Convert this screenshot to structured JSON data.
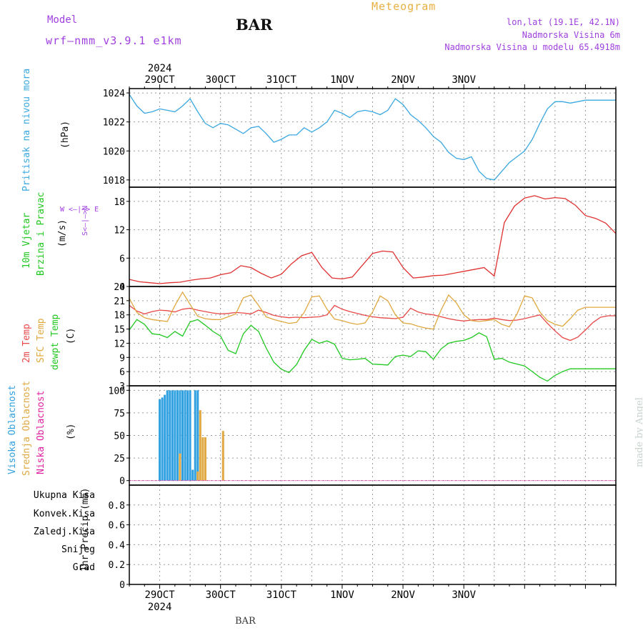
{
  "header": {
    "model_label": "Model",
    "model_name": "wrf—nmm_v3.9.1 e1km",
    "station": "BAR",
    "title": "Meteogram",
    "lonlat": "lon,lat (19.1E, 42.1N)",
    "elevation": "Nadmorska Visina 6m",
    "model_elevation": "Nadmorska Visina u modelu 65.4918m",
    "footer_station": "BAR",
    "credit": "made by Angel"
  },
  "time_axis": {
    "year": "2024",
    "days": [
      "29OCT",
      "30OCT",
      "31OCT",
      "1NOV",
      "2NOV",
      "3NOV"
    ]
  },
  "panels": {
    "pressure": {
      "label": "Pritisak na nivou mora",
      "unit": "(hPa)",
      "color": "#3aa8e0"
    },
    "wind": {
      "label_speed": "10m Vjetar",
      "label_dir": "Brzina i Pravac",
      "unit": "(m/s)",
      "compass": "W  <—|—>  E",
      "compass_ns": "S<—|—>N",
      "speed_color": "#e03030"
    },
    "temp": {
      "t2m": "2m Temp",
      "sfc": "SFC Temp",
      "dew": "dewpt Temp",
      "unit": "(C)",
      "t2m_color": "#e84848",
      "sfc_color": "#e0a840",
      "dew_color": "#20c820"
    },
    "cloud": {
      "high": "Visoka Oblacnost",
      "mid": "Srednja Oblacnost",
      "low": "Niska Oblacnost",
      "unit": "(%)",
      "high_color": "#30a0e0",
      "mid_color": "#e0a840",
      "low_color": "#e020a0"
    },
    "precip": {
      "unit": "1hr Precip (mm)",
      "labels": [
        {
          "text": "Ukupna Kisa",
          "color": "#20c820"
        },
        {
          "text": "Konvek.Kisa",
          "color": "#e84848"
        },
        {
          "text": "Zaledj.Kisa",
          "color": "#f08030"
        },
        {
          "text": "Snijeg",
          "color": "#5050e0"
        },
        {
          "text": "Grad",
          "color": "#30c0c0"
        }
      ]
    }
  },
  "chart_data": [
    {
      "type": "line",
      "ylabel": "Pritisak na nivou mora (hPa)",
      "ylim": [
        1017.5,
        1024.3
      ],
      "yticks": [
        1018,
        1020,
        1022,
        1024
      ],
      "x_unit": "hours from 29OCT 00Z",
      "series": [
        {
          "x": [
            -12,
            -9,
            -6,
            -3,
            0,
            3,
            6,
            9,
            12,
            15,
            18,
            21,
            24,
            27,
            30,
            33,
            36,
            39,
            42,
            45,
            48,
            51,
            54,
            57,
            60,
            63,
            66,
            69,
            72,
            75,
            78,
            81,
            84,
            87,
            90,
            93,
            96,
            99,
            102,
            105,
            108,
            111,
            114,
            117,
            120,
            123,
            126,
            129,
            132,
            135,
            138,
            141,
            144,
            147,
            150,
            153,
            156,
            159,
            162,
            165,
            168,
            171,
            174,
            177,
            180
          ],
          "y": [
            1023.9,
            1023.1,
            1022.6,
            1022.7,
            1022.9,
            1022.8,
            1022.7,
            1023.1,
            1023.6,
            1022.7,
            1021.9,
            1021.6,
            1021.9,
            1021.8,
            1021.5,
            1021.2,
            1021.6,
            1021.7,
            1021.2,
            1020.6,
            1020.8,
            1021.1,
            1021.1,
            1021.6,
            1021.3,
            1021.6,
            1022.0,
            1022.8,
            1022.6,
            1022.3,
            1022.7,
            1022.8,
            1022.7,
            1022.5,
            1022.8,
            1023.6,
            1023.2,
            1022.5,
            1022.1,
            1021.6,
            1021.0,
            1020.6,
            1019.9,
            1019.5,
            1019.4,
            1019.6,
            1018.6,
            1018.1,
            1018.0,
            1018.6,
            1019.2,
            1019.6,
            1020.0,
            1020.8,
            1021.9,
            1022.9,
            1023.4,
            1023.4,
            1023.3,
            1023.4,
            1023.5,
            1023.5,
            1023.5,
            1023.5,
            1023.5
          ]
        }
      ]
    },
    {
      "type": "line",
      "ylabel": "10m Vjetar Brzina i Pravac (m/s)",
      "ylim": [
        0,
        21
      ],
      "yticks": [
        0,
        6,
        12,
        18
      ],
      "series": [
        {
          "x": [
            -12,
            -8,
            -4,
            0,
            4,
            8,
            12,
            16,
            20,
            24,
            28,
            32,
            36,
            40,
            44,
            48,
            52,
            56,
            60,
            64,
            68,
            72,
            76,
            80,
            84,
            88,
            92,
            96,
            100,
            104,
            108,
            112,
            116,
            120,
            124,
            128,
            132,
            136,
            140,
            144,
            148,
            152,
            156,
            160,
            164,
            168,
            172,
            176,
            180
          ],
          "y": [
            1.5,
            1.0,
            0.8,
            0.6,
            0.8,
            0.9,
            1.3,
            1.6,
            1.8,
            2.5,
            2.9,
            4.4,
            4.0,
            2.8,
            1.8,
            2.6,
            4.8,
            6.5,
            7.2,
            4.0,
            1.8,
            1.6,
            2.0,
            4.5,
            7.0,
            7.5,
            7.3,
            4.0,
            1.8,
            2.0,
            2.3,
            2.4,
            2.8,
            3.2,
            3.6,
            4.0,
            2.2,
            13.5,
            17.0,
            18.7,
            19.2,
            18.5,
            18.8,
            18.6,
            17.2,
            15.0,
            14.4,
            13.4,
            11.2
          ]
        }
      ]
    },
    {
      "type": "line",
      "ylabel": "2m Temp SFC Temp dewpt Temp (C)",
      "ylim": [
        3,
        24
      ],
      "yticks": [
        3,
        6,
        9,
        12,
        15,
        18,
        21,
        24
      ],
      "series": [
        {
          "name": "2m Temp",
          "x": [
            -12,
            -9,
            -6,
            -3,
            0,
            3,
            6,
            9,
            12,
            15,
            18,
            21,
            24,
            27,
            30,
            33,
            36,
            39,
            42,
            45,
            48,
            51,
            54,
            57,
            60,
            63,
            66,
            69,
            72,
            75,
            78,
            81,
            84,
            87,
            90,
            93,
            96,
            99,
            102,
            105,
            108,
            111,
            114,
            117,
            120,
            123,
            126,
            129,
            132,
            135,
            138,
            141,
            144,
            147,
            150,
            153,
            156,
            159,
            162,
            165,
            168,
            171,
            174,
            177,
            180
          ],
          "y": [
            20.0,
            18.8,
            18.2,
            18.7,
            19.0,
            18.9,
            18.6,
            19.2,
            19.4,
            19.0,
            18.7,
            18.4,
            18.2,
            18.3,
            18.5,
            18.4,
            18.2,
            19.0,
            18.5,
            17.9,
            17.6,
            17.4,
            17.5,
            17.4,
            17.5,
            17.6,
            18.0,
            20.0,
            19.2,
            18.7,
            18.3,
            17.9,
            17.6,
            17.4,
            17.3,
            17.2,
            17.5,
            19.4,
            18.6,
            18.2,
            18.0,
            17.6,
            17.2,
            16.9,
            16.7,
            16.9,
            17.0,
            17.0,
            17.3,
            17.0,
            16.8,
            16.9,
            17.2,
            17.6,
            18.0,
            16.2,
            14.6,
            13.2,
            12.6,
            13.3,
            14.8,
            16.4,
            17.5,
            17.8,
            17.8
          ]
        },
        {
          "name": "SFC Temp",
          "x": [
            -12,
            -9,
            -6,
            -3,
            0,
            3,
            6,
            9,
            12,
            15,
            18,
            21,
            24,
            27,
            30,
            33,
            36,
            39,
            42,
            45,
            48,
            51,
            54,
            57,
            60,
            63,
            66,
            69,
            72,
            75,
            78,
            81,
            84,
            87,
            90,
            93,
            96,
            99,
            102,
            105,
            108,
            111,
            114,
            117,
            120,
            123,
            126,
            129,
            132,
            135,
            138,
            141,
            144,
            147,
            150,
            153,
            156,
            159,
            162,
            165,
            168,
            171,
            174,
            177,
            180
          ],
          "y": [
            21.5,
            18.5,
            17.4,
            17.0,
            16.8,
            16.6,
            20.0,
            22.8,
            20.2,
            17.7,
            17.2,
            17.0,
            17.0,
            17.6,
            18.2,
            21.6,
            22.2,
            20.0,
            17.6,
            17.0,
            16.6,
            16.2,
            16.4,
            18.5,
            21.8,
            22.0,
            19.2,
            17.1,
            16.8,
            16.3,
            16.0,
            16.3,
            18.6,
            22.0,
            21.0,
            18.0,
            16.3,
            16.1,
            15.6,
            15.2,
            15.0,
            19.0,
            22.2,
            20.6,
            18.0,
            16.8,
            16.6,
            16.8,
            17.0,
            16.0,
            15.5,
            18.2,
            22.0,
            21.6,
            18.6,
            16.8,
            16.0,
            15.6,
            17.2,
            19.0,
            19.6,
            19.6,
            19.6,
            19.6,
            19.6
          ]
        },
        {
          "name": "dewpt Temp",
          "x": [
            -12,
            -9,
            -6,
            -3,
            0,
            3,
            6,
            9,
            12,
            15,
            18,
            21,
            24,
            27,
            30,
            33,
            36,
            39,
            42,
            45,
            48,
            51,
            54,
            57,
            60,
            63,
            66,
            69,
            72,
            75,
            78,
            81,
            84,
            87,
            90,
            93,
            96,
            99,
            102,
            105,
            108,
            111,
            114,
            117,
            120,
            123,
            126,
            129,
            132,
            135,
            138,
            141,
            144,
            147,
            150,
            153,
            156,
            159,
            162,
            165,
            168,
            171,
            174,
            177,
            180
          ],
          "y": [
            14.8,
            17.0,
            16.0,
            14.0,
            13.8,
            13.2,
            14.5,
            13.5,
            16.5,
            17.0,
            15.8,
            14.5,
            13.5,
            10.5,
            9.8,
            14.0,
            15.8,
            14.5,
            11.0,
            8.0,
            6.5,
            5.8,
            7.5,
            10.5,
            12.8,
            12.0,
            12.5,
            11.8,
            8.8,
            8.5,
            8.6,
            8.8,
            7.6,
            7.5,
            7.4,
            9.2,
            9.5,
            9.2,
            10.4,
            10.2,
            8.6,
            10.8,
            12.0,
            12.4,
            12.6,
            13.2,
            14.2,
            13.4,
            8.6,
            8.8,
            8.0,
            7.6,
            7.2,
            6.0,
            4.8,
            4.0,
            5.2,
            6.0,
            6.6,
            6.6,
            6.6,
            6.6,
            6.6,
            6.6,
            6.6
          ]
        }
      ]
    },
    {
      "type": "bar",
      "ylabel": "Visoka Oblacnost Srednja Oblacnost Niska Oblacnost (%)",
      "ylim": [
        -5,
        105
      ],
      "yticks": [
        0,
        25,
        50,
        75,
        100
      ],
      "series": [
        {
          "name": "Visoka Oblacnost",
          "x": [
            0,
            1,
            2,
            3,
            4,
            5,
            6,
            7,
            8,
            9,
            10,
            11,
            12,
            13,
            14,
            15
          ],
          "values": [
            90,
            92,
            95,
            100,
            100,
            100,
            100,
            100,
            100,
            100,
            100,
            100,
            100,
            12,
            100,
            100
          ]
        },
        {
          "name": "Srednja Oblacnost",
          "x": [
            8,
            15,
            16,
            17,
            18,
            25
          ],
          "values": [
            30,
            10,
            78,
            48,
            48,
            55
          ]
        },
        {
          "name": "Niska Oblacnost",
          "x": [],
          "values": []
        }
      ]
    },
    {
      "type": "bar",
      "ylabel": "1hr Precip (mm)",
      "ylim": [
        0,
        1
      ],
      "yticks": [
        0,
        0.2,
        0.4,
        0.6,
        0.8
      ],
      "series": [
        {
          "name": "Ukupna Kisa",
          "x": [],
          "values": []
        }
      ]
    }
  ]
}
